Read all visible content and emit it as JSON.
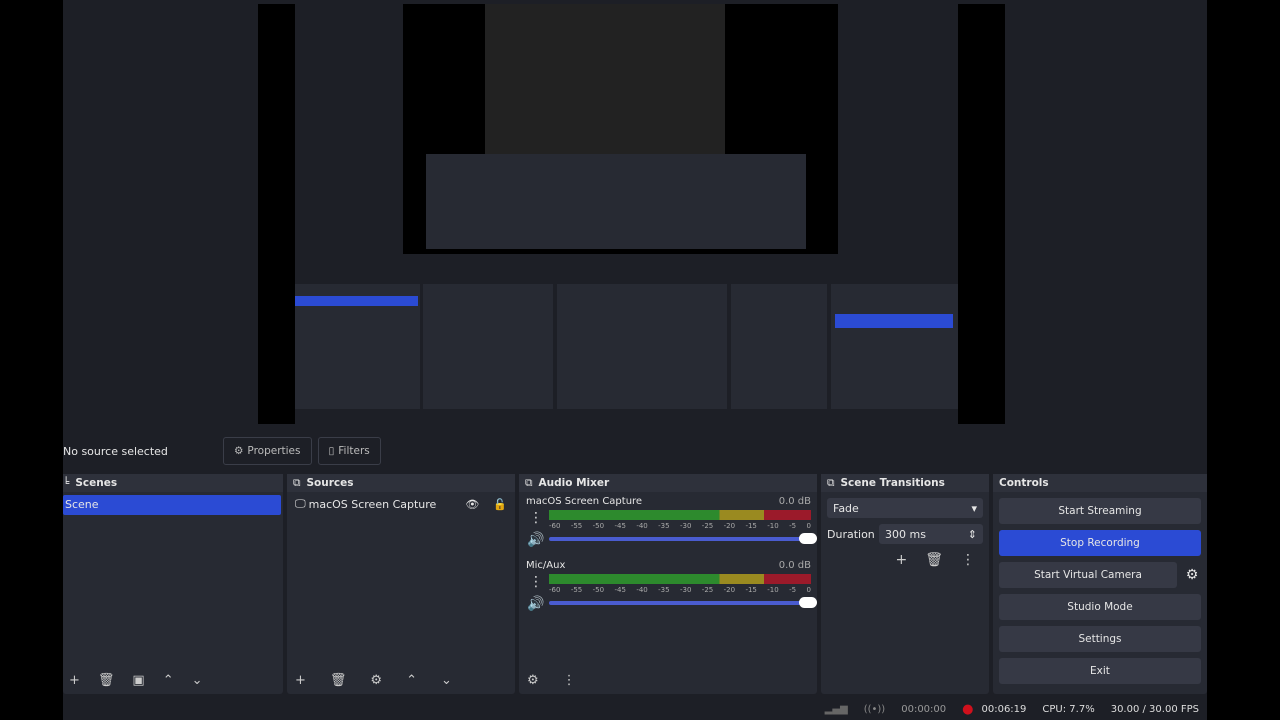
{
  "source_bar": {
    "no_source": "No source selected",
    "properties": "Properties",
    "filters": "Filters"
  },
  "scenes": {
    "title": "Scenes",
    "items": [
      "Scene"
    ]
  },
  "sources": {
    "title": "Sources",
    "items": [
      {
        "name": "macOS Screen Capture",
        "visible": true,
        "locked": false
      }
    ]
  },
  "mixer": {
    "title": "Audio Mixer",
    "ticks": [
      "-60",
      "-55",
      "-50",
      "-45",
      "-40",
      "-35",
      "-30",
      "-25",
      "-20",
      "-15",
      "-10",
      "-5",
      "0"
    ],
    "channels": [
      {
        "name": "macOS Screen Capture",
        "db": "0.0 dB",
        "volume": 100
      },
      {
        "name": "Mic/Aux",
        "db": "0.0 dB",
        "volume": 100
      }
    ]
  },
  "transitions": {
    "title": "Scene Transitions",
    "selected": "Fade",
    "duration_label": "Duration",
    "duration": "300 ms"
  },
  "controls": {
    "title": "Controls",
    "start_streaming": "Start Streaming",
    "stop_recording": "Stop Recording",
    "start_virtual_camera": "Start Virtual Camera",
    "studio_mode": "Studio Mode",
    "settings": "Settings",
    "exit": "Exit"
  },
  "status": {
    "stream_time": "00:00:00",
    "rec_time": "00:06:19",
    "cpu": "CPU: 7.7%",
    "fps": "30.00 / 30.00 FPS"
  },
  "colors": {
    "accent": "#2b4bd4",
    "recording": "#d0101c"
  }
}
